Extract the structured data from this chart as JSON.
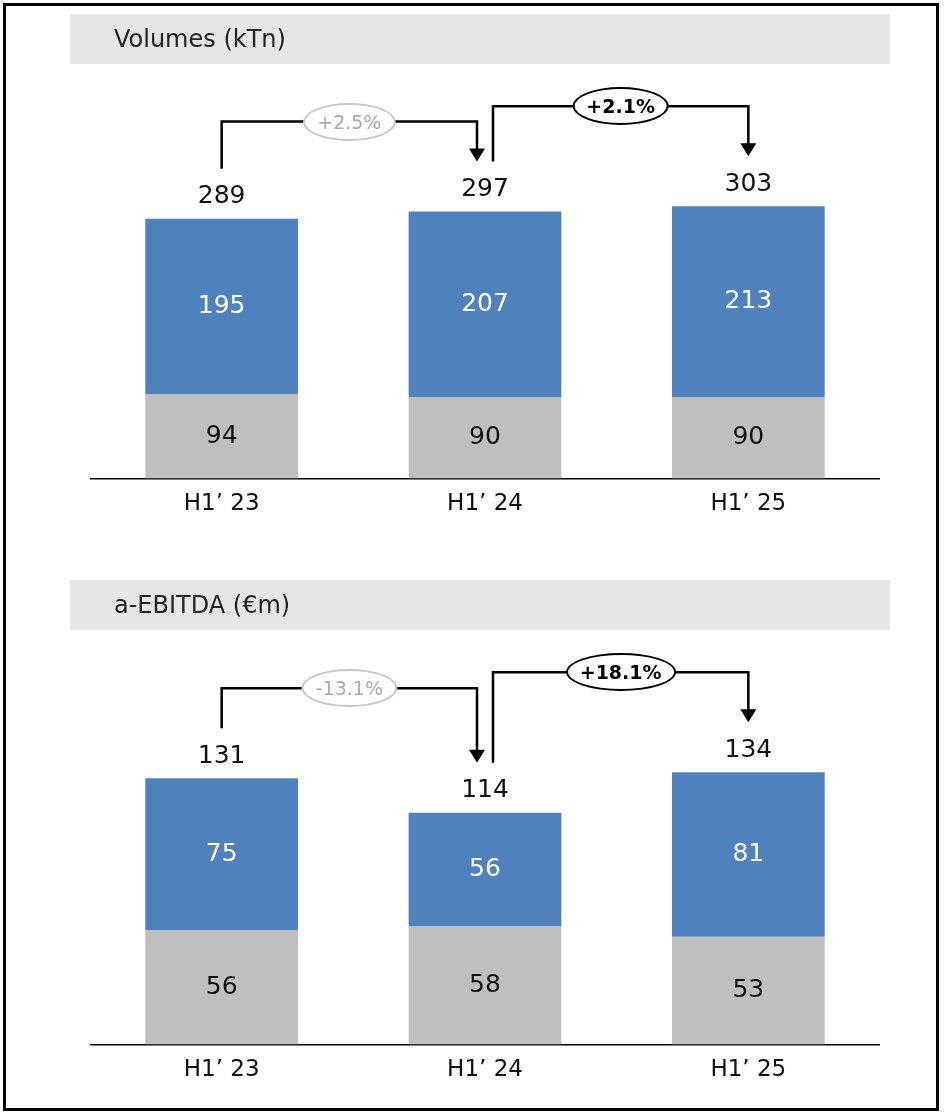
{
  "chart_data": [
    {
      "type": "bar",
      "title": "Volumes  (kTn)",
      "categories": [
        "H1’ 23",
        "H1’ 24",
        "H1’ 25"
      ],
      "stacked": true,
      "data_labels": true,
      "legend": false,
      "grid": false,
      "series": [
        {
          "color": "#bfbfbf",
          "values": [
            94,
            90,
            90
          ]
        },
        {
          "color": "#4f81bd",
          "values": [
            195,
            207,
            213
          ]
        }
      ],
      "totals": [
        "289",
        "297",
        "303"
      ],
      "annotations": [
        "+2.5%",
        "+2.1%"
      ]
    },
    {
      "type": "bar",
      "title": "a-EBITDA (€m)",
      "categories": [
        "H1’ 23",
        "H1’ 24",
        "H1’ 25"
      ],
      "stacked": true,
      "data_labels": true,
      "legend": false,
      "grid": false,
      "series": [
        {
          "color": "#bfbfbf",
          "values": [
            56,
            58,
            53
          ]
        },
        {
          "color": "#4f81bd",
          "values": [
            75,
            56,
            81
          ]
        }
      ],
      "totals": [
        "131",
        "114",
        "134"
      ],
      "annotations": [
        "-13.1%",
        "+18.1%"
      ]
    }
  ]
}
